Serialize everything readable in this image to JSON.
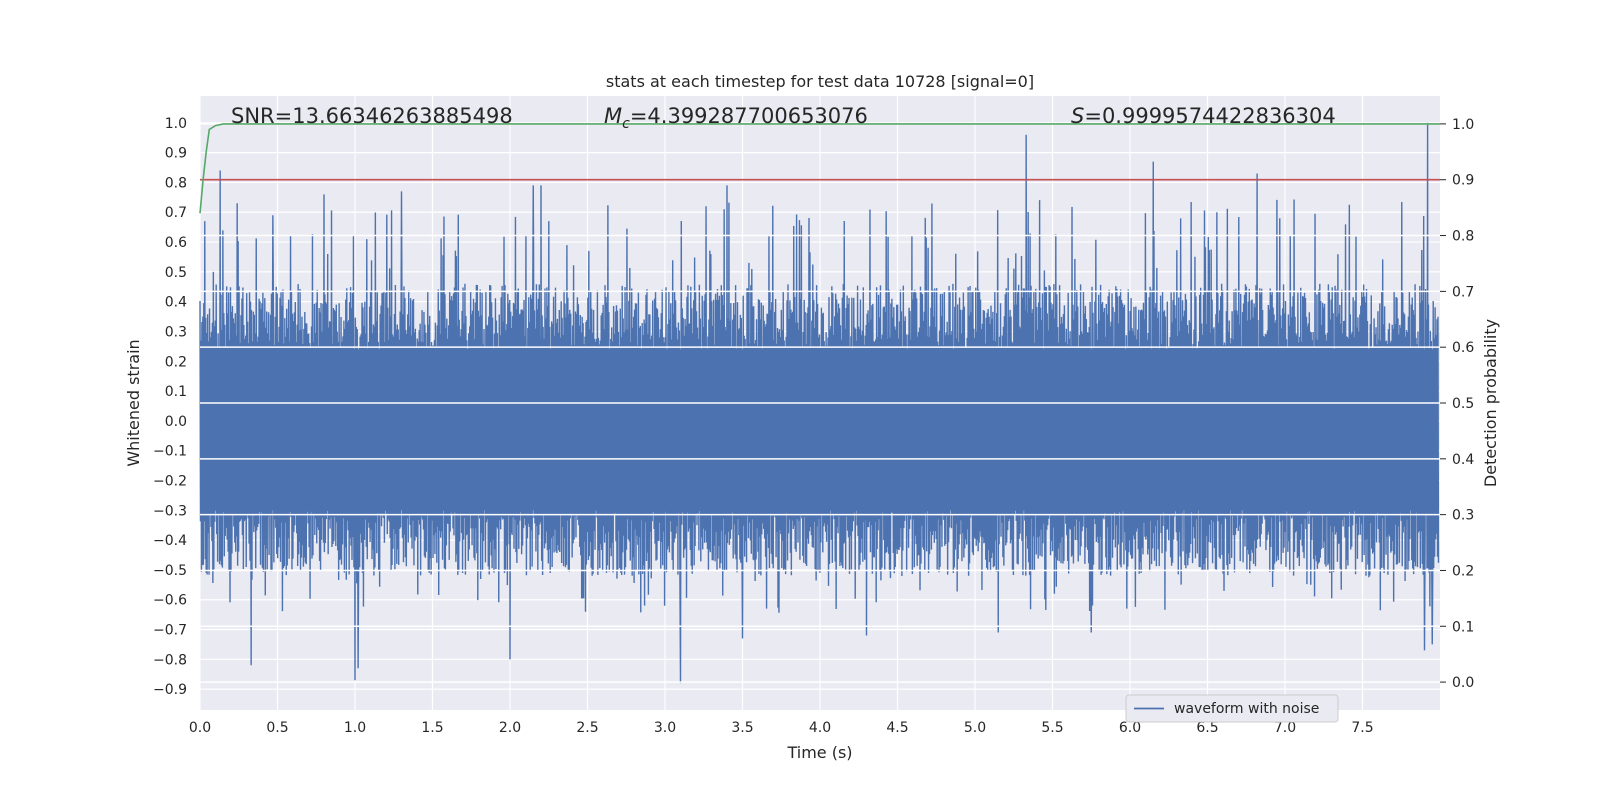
{
  "chart_data": {
    "type": "line",
    "title": "stats at each timestep for test data 10728 [signal=0]",
    "xlabel": "Time (s)",
    "ylabel": "Whitened strain",
    "y2label": "Detection probability",
    "xlim": [
      0.0,
      8.0
    ],
    "ylim": [
      -0.97,
      1.09
    ],
    "y2lim": [
      -0.05,
      1.05
    ],
    "x_ticks": [
      "0.0",
      "0.5",
      "1.0",
      "1.5",
      "2.0",
      "2.5",
      "3.0",
      "3.5",
      "4.0",
      "4.5",
      "5.0",
      "5.5",
      "6.0",
      "6.5",
      "7.0",
      "7.5"
    ],
    "y_ticks": [
      "1.0",
      "0.9",
      "0.8",
      "0.7",
      "0.6",
      "0.5",
      "0.4",
      "0.3",
      "0.2",
      "0.1",
      "0.0",
      "−0.1",
      "−0.2",
      "−0.3",
      "−0.4",
      "−0.5",
      "−0.6",
      "−0.7",
      "−0.8",
      "−0.9"
    ],
    "y2_ticks": [
      "1.0",
      "0.9",
      "0.8",
      "0.7",
      "0.6",
      "0.5",
      "0.4",
      "0.3",
      "0.2",
      "0.1",
      "0.0"
    ],
    "annotations": {
      "snr": "SNR=13.66346263885498",
      "mc_symbol": "M",
      "mc_sub": "c",
      "mc_value": "=4.399287700653076",
      "s_symbol": "S",
      "s_value": "=0.9999574422836304"
    },
    "grid": true,
    "legend_position": "lower-right",
    "series": [
      {
        "name": "waveform with noise",
        "axis": "left",
        "color": "#4c72b0",
        "kind": "noise-waveform",
        "band_upper": 0.24,
        "band_lower": -0.3,
        "peaks_up": [
          [
            0.13,
            0.84
          ],
          [
            0.47,
            0.69
          ],
          [
            0.8,
            0.76
          ],
          [
            1.3,
            0.77
          ],
          [
            2.15,
            0.79
          ],
          [
            2.2,
            0.79
          ],
          [
            3.4,
            0.79
          ],
          [
            5.33,
            0.96
          ],
          [
            6.15,
            0.87
          ],
          [
            6.82,
            0.83
          ],
          [
            7.92,
            1.0
          ]
        ],
        "peaks_down": [
          [
            0.33,
            -0.82
          ],
          [
            1.0,
            -0.87
          ],
          [
            1.02,
            -0.83
          ],
          [
            2.0,
            -0.8
          ],
          [
            3.1,
            -0.88
          ],
          [
            3.5,
            -0.73
          ],
          [
            4.3,
            -0.72
          ],
          [
            5.15,
            -0.71
          ],
          [
            5.75,
            -0.71
          ],
          [
            7.9,
            -0.77
          ],
          [
            7.95,
            -0.75
          ]
        ]
      },
      {
        "axis": "right",
        "color": "#55a868",
        "x": [
          0.0,
          0.02,
          0.04,
          0.06,
          0.1,
          0.15,
          0.3,
          8.0
        ],
        "y": [
          0.84,
          0.9,
          0.95,
          0.99,
          0.997,
          1.0,
          1.0,
          1.0
        ]
      },
      {
        "axis": "right",
        "color": "#c44e52",
        "x": [
          0.0,
          8.0
        ],
        "y": [
          0.9,
          0.9
        ]
      }
    ]
  }
}
